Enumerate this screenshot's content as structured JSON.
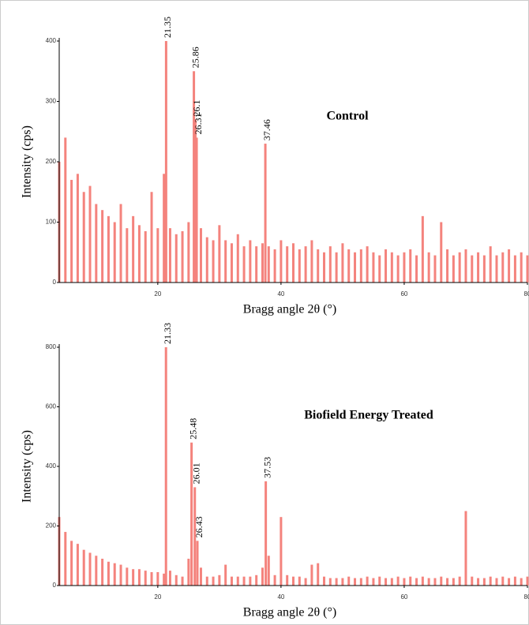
{
  "chart_data": [
    {
      "type": "bar",
      "title": "Control",
      "x_label": "Bragg angle 2θ (°)",
      "y_label": "Intensity (cps)",
      "color": "#f4837d",
      "xlim": [
        4,
        80
      ],
      "xticks": [
        20,
        40,
        60,
        80
      ],
      "ylim": [
        0,
        400
      ],
      "yticks": [
        0,
        100,
        200,
        300,
        400
      ],
      "x": [
        4,
        5,
        6,
        7,
        8,
        9,
        10,
        11,
        12,
        13,
        14,
        15,
        16,
        17,
        18,
        19,
        20,
        21,
        21.35,
        22,
        23,
        24,
        25,
        25.86,
        26.1,
        26.31,
        27,
        28,
        29,
        30,
        31,
        32,
        33,
        34,
        35,
        36,
        37,
        37.46,
        38,
        39,
        40,
        41,
        42,
        43,
        44,
        45,
        46,
        47,
        48,
        49,
        50,
        51,
        52,
        53,
        54,
        55,
        56,
        57,
        58,
        59,
        60,
        61,
        62,
        63,
        64,
        65,
        66,
        67,
        68,
        69,
        70,
        71,
        72,
        73,
        74,
        75,
        76,
        77,
        78,
        79,
        80
      ],
      "values": [
        200,
        240,
        170,
        180,
        150,
        160,
        130,
        120,
        110,
        100,
        130,
        90,
        110,
        95,
        85,
        150,
        90,
        180,
        400,
        90,
        80,
        85,
        100,
        350,
        270,
        240,
        90,
        75,
        70,
        95,
        70,
        65,
        80,
        60,
        70,
        60,
        65,
        230,
        60,
        55,
        70,
        60,
        65,
        55,
        60,
        70,
        55,
        50,
        60,
        50,
        65,
        55,
        50,
        55,
        60,
        50,
        45,
        55,
        50,
        45,
        50,
        55,
        45,
        110,
        50,
        45,
        100,
        55,
        45,
        50,
        55,
        45,
        50,
        45,
        60,
        45,
        50,
        55,
        45,
        50,
        45
      ],
      "peak_labels": [
        21.35,
        25.86,
        26.1,
        26.31,
        37.46
      ]
    },
    {
      "type": "bar",
      "title": "Biofield Energy Treated",
      "x_label": "Bragg angle 2θ (°)",
      "y_label": "Intensity (cps)",
      "color": "#f4837d",
      "xlim": [
        4,
        80
      ],
      "xticks": [
        20,
        40,
        60,
        80
      ],
      "ylim": [
        0,
        800
      ],
      "yticks": [
        0,
        200,
        400,
        600,
        800
      ],
      "x": [
        4,
        5,
        6,
        7,
        8,
        9,
        10,
        11,
        12,
        13,
        14,
        15,
        16,
        17,
        18,
        19,
        20,
        21,
        21.33,
        22,
        23,
        24,
        25,
        25.48,
        26.01,
        26.43,
        27,
        28,
        29,
        30,
        31,
        32,
        33,
        34,
        35,
        36,
        37,
        37.53,
        38,
        39,
        40,
        41,
        42,
        43,
        44,
        45,
        46,
        47,
        48,
        49,
        50,
        51,
        52,
        53,
        54,
        55,
        56,
        57,
        58,
        59,
        60,
        61,
        62,
        63,
        64,
        65,
        66,
        67,
        68,
        69,
        70,
        71,
        72,
        73,
        74,
        75,
        76,
        77,
        78,
        79,
        80
      ],
      "values": [
        230,
        180,
        150,
        140,
        120,
        110,
        100,
        90,
        80,
        75,
        70,
        60,
        55,
        55,
        50,
        45,
        45,
        40,
        800,
        50,
        35,
        30,
        90,
        480,
        330,
        150,
        60,
        30,
        30,
        35,
        70,
        30,
        30,
        30,
        30,
        35,
        60,
        350,
        100,
        35,
        230,
        35,
        30,
        30,
        25,
        70,
        75,
        30,
        25,
        25,
        25,
        30,
        25,
        25,
        30,
        25,
        30,
        25,
        25,
        30,
        25,
        30,
        25,
        30,
        25,
        25,
        30,
        25,
        25,
        30,
        250,
        30,
        25,
        25,
        30,
        25,
        30,
        25,
        30,
        25,
        30
      ],
      "peak_labels": [
        21.33,
        25.48,
        26.01,
        26.43,
        37.53
      ]
    }
  ]
}
